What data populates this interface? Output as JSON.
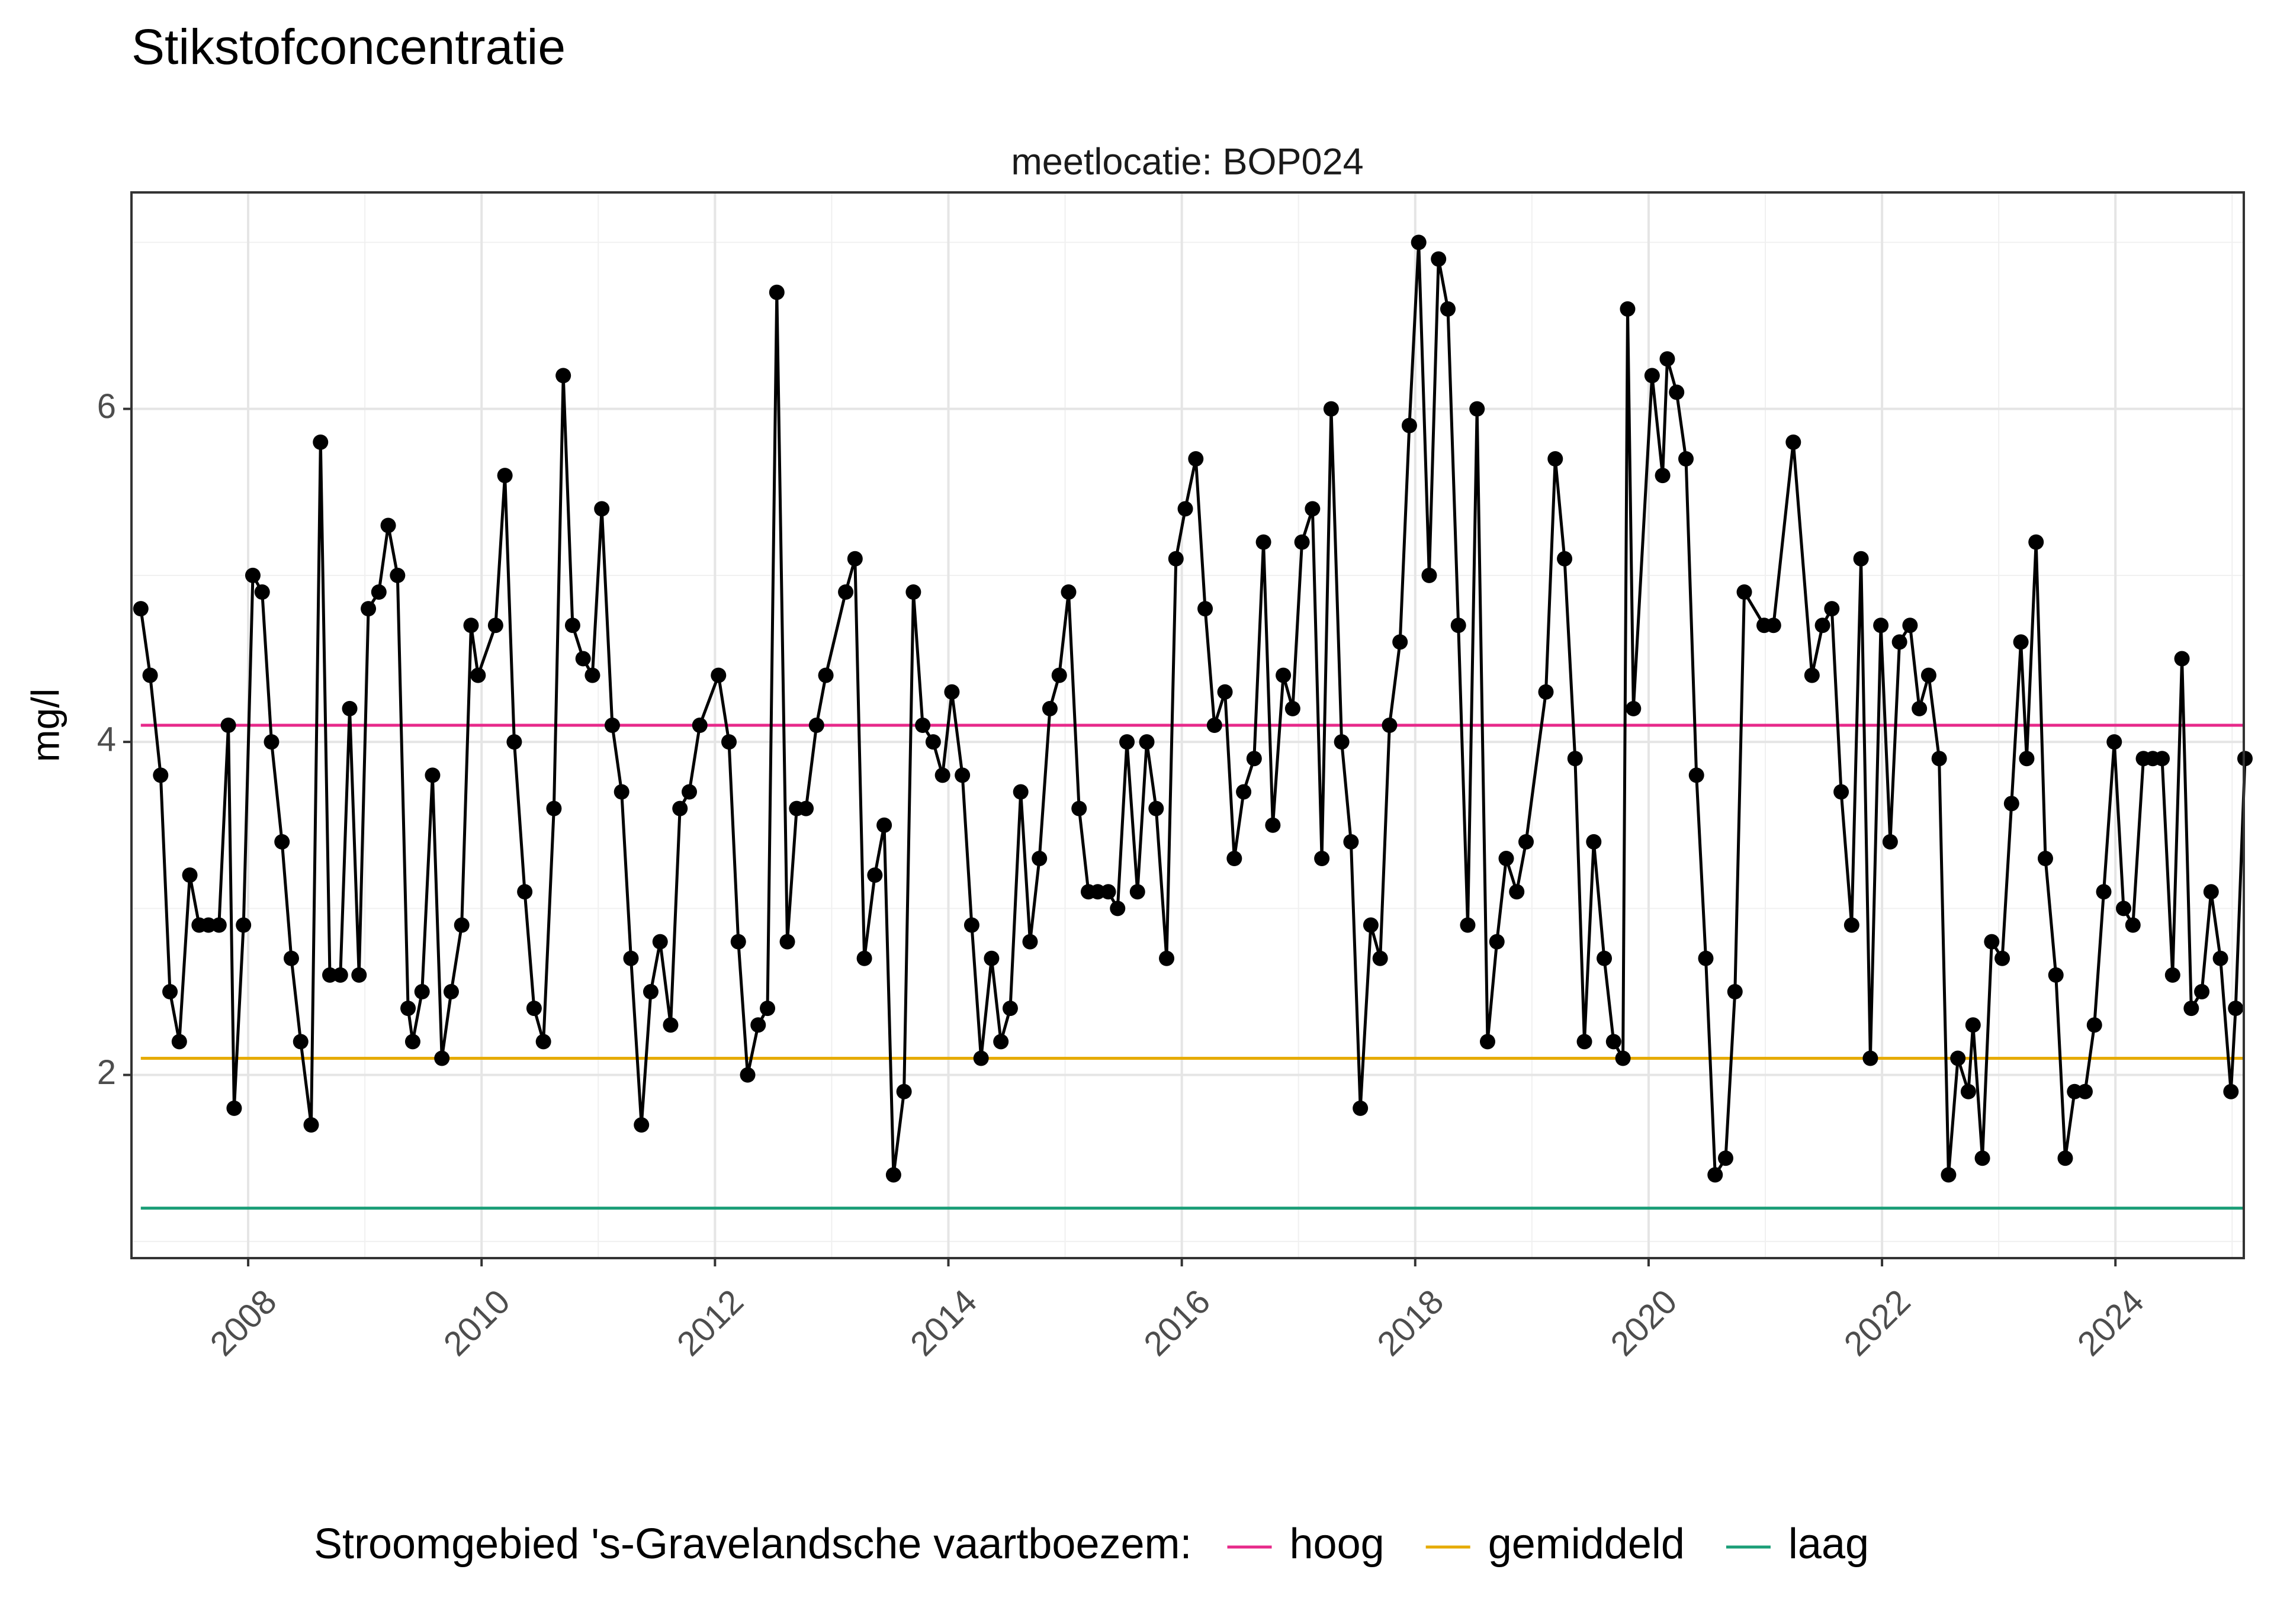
{
  "chart_data": {
    "type": "line",
    "title": "Stikstofconcentratie",
    "facet_label": "meetlocatie: BOP024",
    "xlabel": "",
    "ylabel": "mg/l",
    "xlim": [
      2007.0,
      2025.1
    ],
    "ylim": [
      0.9,
      7.3
    ],
    "x_ticks": [
      2008,
      2010,
      2012,
      2014,
      2016,
      2018,
      2020,
      2022,
      2024
    ],
    "y_ticks": [
      2,
      4,
      6
    ],
    "grid": true,
    "legend_position": "bottom",
    "legend_title": "Stroomgebied 's-Gravelandsche vaartboezem:",
    "reference_lines": [
      {
        "name": "hoog",
        "value": 4.1,
        "color": "#e7298a"
      },
      {
        "name": "gemiddeld",
        "value": 2.1,
        "color": "#e6ab02"
      },
      {
        "name": "laag",
        "value": 1.2,
        "color": "#1b9e77"
      }
    ],
    "series": [
      {
        "color": "#000000",
        "points": [
          [
            2007.08,
            4.8
          ],
          [
            2007.16,
            4.4
          ],
          [
            2007.25,
            3.8
          ],
          [
            2007.33,
            2.5
          ],
          [
            2007.41,
            2.2
          ],
          [
            2007.5,
            3.2
          ],
          [
            2007.58,
            2.9
          ],
          [
            2007.66,
            2.9
          ],
          [
            2007.75,
            2.9
          ],
          [
            2007.83,
            4.1
          ],
          [
            2007.88,
            1.8
          ],
          [
            2007.96,
            2.9
          ],
          [
            2008.04,
            5.0
          ],
          [
            2008.12,
            4.9
          ],
          [
            2008.2,
            4.0
          ],
          [
            2008.29,
            3.4
          ],
          [
            2008.37,
            2.7
          ],
          [
            2008.45,
            2.2
          ],
          [
            2008.54,
            1.7
          ],
          [
            2008.62,
            5.8
          ],
          [
            2008.7,
            2.6
          ],
          [
            2008.79,
            2.6
          ],
          [
            2008.87,
            4.2
          ],
          [
            2008.95,
            2.6
          ],
          [
            2009.03,
            4.8
          ],
          [
            2009.12,
            4.9
          ],
          [
            2009.2,
            5.3
          ],
          [
            2009.28,
            5.0
          ],
          [
            2009.37,
            2.4
          ],
          [
            2009.41,
            2.2
          ],
          [
            2009.49,
            2.5
          ],
          [
            2009.58,
            3.8
          ],
          [
            2009.66,
            2.1
          ],
          [
            2009.74,
            2.5
          ],
          [
            2009.83,
            2.9
          ],
          [
            2009.91,
            4.7
          ],
          [
            2009.97,
            4.4
          ],
          [
            2010.12,
            4.7
          ],
          [
            2010.2,
            5.6
          ],
          [
            2010.28,
            4.0
          ],
          [
            2010.37,
            3.1
          ],
          [
            2010.45,
            2.4
          ],
          [
            2010.53,
            2.2
          ],
          [
            2010.62,
            3.6
          ],
          [
            2010.7,
            6.2
          ],
          [
            2010.78,
            4.7
          ],
          [
            2010.87,
            4.5
          ],
          [
            2010.95,
            4.4
          ],
          [
            2011.03,
            5.4
          ],
          [
            2011.12,
            4.1
          ],
          [
            2011.2,
            3.7
          ],
          [
            2011.28,
            2.7
          ],
          [
            2011.37,
            1.7
          ],
          [
            2011.45,
            2.5
          ],
          [
            2011.53,
            2.8
          ],
          [
            2011.62,
            2.3
          ],
          [
            2011.7,
            3.6
          ],
          [
            2011.78,
            3.7
          ],
          [
            2011.87,
            4.1
          ],
          [
            2012.03,
            4.4
          ],
          [
            2012.12,
            4.0
          ],
          [
            2012.2,
            2.8
          ],
          [
            2012.28,
            2.0
          ],
          [
            2012.37,
            2.3
          ],
          [
            2012.45,
            2.4
          ],
          [
            2012.53,
            6.7
          ],
          [
            2012.62,
            2.8
          ],
          [
            2012.7,
            3.6
          ],
          [
            2012.78,
            3.6
          ],
          [
            2012.87,
            4.1
          ],
          [
            2012.95,
            4.4
          ],
          [
            2013.12,
            4.9
          ],
          [
            2013.2,
            5.1
          ],
          [
            2013.28,
            2.7
          ],
          [
            2013.37,
            3.2
          ],
          [
            2013.45,
            3.5
          ],
          [
            2013.53,
            1.4
          ],
          [
            2013.62,
            1.9
          ],
          [
            2013.7,
            4.9
          ],
          [
            2013.78,
            4.1
          ],
          [
            2013.87,
            4.0
          ],
          [
            2013.95,
            3.8
          ],
          [
            2014.03,
            4.3
          ],
          [
            2014.12,
            3.8
          ],
          [
            2014.2,
            2.9
          ],
          [
            2014.28,
            2.1
          ],
          [
            2014.37,
            2.7
          ],
          [
            2014.45,
            2.2
          ],
          [
            2014.53,
            2.4
          ],
          [
            2014.62,
            3.7
          ],
          [
            2014.7,
            2.8
          ],
          [
            2014.78,
            3.3
          ],
          [
            2014.87,
            4.2
          ],
          [
            2014.95,
            4.4
          ],
          [
            2015.03,
            4.9
          ],
          [
            2015.12,
            3.6
          ],
          [
            2015.2,
            3.1
          ],
          [
            2015.28,
            3.1
          ],
          [
            2015.37,
            3.1
          ],
          [
            2015.45,
            3.0
          ],
          [
            2015.53,
            4.0
          ],
          [
            2015.62,
            3.1
          ],
          [
            2015.7,
            4.0
          ],
          [
            2015.78,
            3.6
          ],
          [
            2015.87,
            2.7
          ],
          [
            2015.95,
            5.1
          ],
          [
            2016.03,
            5.4
          ],
          [
            2016.12,
            5.7
          ],
          [
            2016.2,
            4.8
          ],
          [
            2016.28,
            4.1
          ],
          [
            2016.37,
            4.3
          ],
          [
            2016.45,
            3.3
          ],
          [
            2016.53,
            3.7
          ],
          [
            2016.62,
            3.9
          ],
          [
            2016.7,
            5.2
          ],
          [
            2016.78,
            3.5
          ],
          [
            2016.87,
            4.4
          ],
          [
            2016.95,
            4.2
          ],
          [
            2017.03,
            5.2
          ],
          [
            2017.12,
            5.4
          ],
          [
            2017.2,
            3.3
          ],
          [
            2017.28,
            6.0
          ],
          [
            2017.37,
            4.0
          ],
          [
            2017.45,
            3.4
          ],
          [
            2017.53,
            1.8
          ],
          [
            2017.62,
            2.9
          ],
          [
            2017.7,
            2.7
          ],
          [
            2017.78,
            4.1
          ],
          [
            2017.87,
            4.6
          ],
          [
            2017.95,
            5.9
          ],
          [
            2018.03,
            7.0
          ],
          [
            2018.12,
            5.0
          ],
          [
            2018.2,
            6.9
          ],
          [
            2018.28,
            6.6
          ],
          [
            2018.37,
            4.7
          ],
          [
            2018.45,
            2.9
          ],
          [
            2018.53,
            6.0
          ],
          [
            2018.62,
            2.2
          ],
          [
            2018.7,
            2.8
          ],
          [
            2018.78,
            3.3
          ],
          [
            2018.87,
            3.1
          ],
          [
            2018.95,
            3.4
          ],
          [
            2019.12,
            4.3
          ],
          [
            2019.2,
            5.7
          ],
          [
            2019.28,
            5.1
          ],
          [
            2019.37,
            3.9
          ],
          [
            2019.45,
            2.2
          ],
          [
            2019.53,
            3.4
          ],
          [
            2019.62,
            2.7
          ],
          [
            2019.7,
            2.2
          ],
          [
            2019.78,
            2.1
          ],
          [
            2019.82,
            6.6
          ],
          [
            2019.87,
            4.2
          ],
          [
            2020.03,
            6.2
          ],
          [
            2020.12,
            5.6
          ],
          [
            2020.16,
            6.3
          ],
          [
            2020.24,
            6.1
          ],
          [
            2020.32,
            5.7
          ],
          [
            2020.41,
            3.8
          ],
          [
            2020.49,
            2.7
          ],
          [
            2020.57,
            1.4
          ],
          [
            2020.66,
            1.5
          ],
          [
            2020.74,
            2.5
          ],
          [
            2020.82,
            4.9
          ],
          [
            2020.99,
            4.7
          ],
          [
            2021.07,
            4.7
          ],
          [
            2021.24,
            5.8
          ],
          [
            2021.4,
            4.4
          ],
          [
            2021.49,
            4.7
          ],
          [
            2021.57,
            4.8
          ],
          [
            2021.65,
            3.7
          ],
          [
            2021.74,
            2.9
          ],
          [
            2021.82,
            5.1
          ],
          [
            2021.9,
            2.1
          ],
          [
            2021.99,
            4.7
          ],
          [
            2022.07,
            3.4
          ],
          [
            2022.15,
            4.6
          ],
          [
            2022.24,
            4.7
          ],
          [
            2022.32,
            4.2
          ],
          [
            2022.4,
            4.4
          ],
          [
            2022.49,
            3.9
          ],
          [
            2022.57,
            1.4
          ],
          [
            2022.65,
            2.1
          ],
          [
            2022.74,
            1.9
          ],
          [
            2022.78,
            2.3
          ],
          [
            2022.86,
            1.5
          ],
          [
            2022.94,
            2.8
          ],
          [
            2023.03,
            2.7
          ],
          [
            2023.11,
            3.63
          ],
          [
            2023.19,
            4.6
          ],
          [
            2023.24,
            3.9
          ],
          [
            2023.32,
            5.2
          ],
          [
            2023.4,
            3.3
          ],
          [
            2023.49,
            2.6
          ],
          [
            2023.57,
            1.5
          ],
          [
            2023.65,
            1.9
          ],
          [
            2023.74,
            1.9
          ],
          [
            2023.82,
            2.3
          ],
          [
            2023.9,
            3.1
          ],
          [
            2023.99,
            4.0
          ],
          [
            2024.07,
            3.0
          ],
          [
            2024.15,
            2.9
          ],
          [
            2024.24,
            3.9
          ],
          [
            2024.32,
            3.9
          ],
          [
            2024.4,
            3.9
          ],
          [
            2024.49,
            2.6
          ],
          [
            2024.57,
            4.5
          ],
          [
            2024.65,
            2.4
          ],
          [
            2024.74,
            2.5
          ],
          [
            2024.82,
            3.1
          ],
          [
            2024.9,
            2.7
          ],
          [
            2024.99,
            1.9
          ],
          [
            2025.03,
            2.4
          ],
          [
            2025.11,
            3.9
          ]
        ]
      }
    ]
  }
}
